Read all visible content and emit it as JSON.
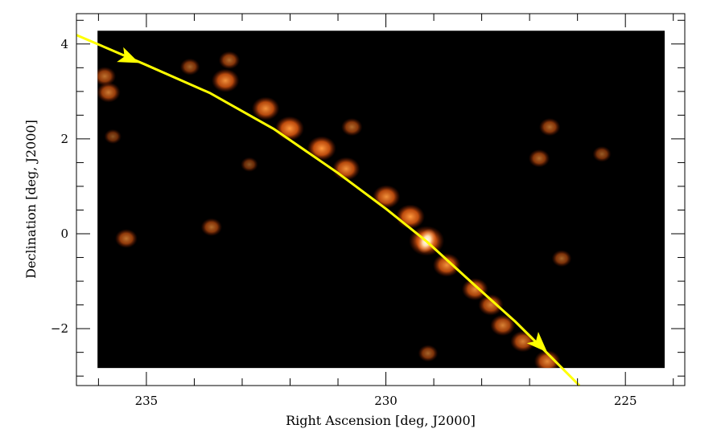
{
  "chart_data": {
    "type": "heatmap",
    "xlabel": "Right Ascension [deg, J2000]",
    "ylabel": "Declination [deg, J2000]",
    "xlim": [
      236.46,
      223.76
    ],
    "ylim": [
      -3.2,
      4.64
    ],
    "x_inverted": true,
    "image_extent": {
      "ra": [
        236.02,
        224.18
      ],
      "dec": [
        -2.83,
        4.28
      ]
    },
    "x_major_ticks": [
      235,
      230,
      225
    ],
    "x_tick_labels": [
      "235",
      "230",
      "225"
    ],
    "x_minor_step": 1,
    "y_major_ticks": [
      4,
      2,
      0,
      -2
    ],
    "y_tick_labels": [
      "4",
      "2",
      "0",
      "−2"
    ],
    "y_minor_step": 0.5,
    "grid": false,
    "colormap": "black-orange-white",
    "track_color": "#ffff00",
    "track": [
      [
        236.46,
        4.19
      ],
      [
        235.03,
        3.57
      ],
      [
        233.68,
        2.97
      ],
      [
        232.34,
        2.21
      ],
      [
        231.0,
        1.28
      ],
      [
        229.99,
        0.52
      ],
      [
        229.15,
        -0.16
      ],
      [
        228.14,
        -1.09
      ],
      [
        227.3,
        -1.85
      ],
      [
        226.63,
        -2.52
      ],
      [
        225.96,
        -3.2
      ]
    ],
    "track_arrows": [
      [
        235.15,
        3.6
      ],
      [
        226.63,
        -2.5
      ]
    ],
    "density_features": [
      {
        "ra": 233.35,
        "dec": 3.23,
        "intensity": 0.7
      },
      {
        "ra": 232.51,
        "dec": 2.64,
        "intensity": 0.7
      },
      {
        "ra": 232.01,
        "dec": 2.22,
        "intensity": 0.75
      },
      {
        "ra": 231.34,
        "dec": 1.8,
        "intensity": 0.75
      },
      {
        "ra": 230.83,
        "dec": 1.37,
        "intensity": 0.7
      },
      {
        "ra": 229.99,
        "dec": 0.78,
        "intensity": 0.7
      },
      {
        "ra": 229.49,
        "dec": 0.36,
        "intensity": 0.75
      },
      {
        "ra": 229.15,
        "dec": -0.15,
        "intensity": 1.0
      },
      {
        "ra": 228.73,
        "dec": -0.66,
        "intensity": 0.7
      },
      {
        "ra": 228.14,
        "dec": -1.17,
        "intensity": 0.65
      },
      {
        "ra": 227.81,
        "dec": -1.5,
        "intensity": 0.6
      },
      {
        "ra": 227.56,
        "dec": -1.93,
        "intensity": 0.6
      },
      {
        "ra": 227.14,
        "dec": -2.27,
        "intensity": 0.6
      },
      {
        "ra": 226.63,
        "dec": -2.69,
        "intensity": 0.65
      },
      {
        "ra": 235.87,
        "dec": 3.32,
        "intensity": 0.5
      },
      {
        "ra": 235.79,
        "dec": 2.98,
        "intensity": 0.55
      },
      {
        "ra": 233.27,
        "dec": 3.66,
        "intensity": 0.45
      },
      {
        "ra": 234.09,
        "dec": 3.52,
        "intensity": 0.4
      },
      {
        "ra": 230.71,
        "dec": 2.25,
        "intensity": 0.45
      },
      {
        "ra": 235.42,
        "dec": -0.1,
        "intensity": 0.5
      },
      {
        "ra": 233.64,
        "dec": 0.14,
        "intensity": 0.45
      },
      {
        "ra": 226.8,
        "dec": 1.59,
        "intensity": 0.45
      },
      {
        "ra": 226.58,
        "dec": 2.25,
        "intensity": 0.45
      },
      {
        "ra": 226.33,
        "dec": -0.52,
        "intensity": 0.4
      },
      {
        "ra": 225.49,
        "dec": 1.68,
        "intensity": 0.35
      },
      {
        "ra": 229.12,
        "dec": -2.52,
        "intensity": 0.4
      },
      {
        "ra": 232.85,
        "dec": 1.46,
        "intensity": 0.3
      },
      {
        "ra": 235.7,
        "dec": 2.05,
        "intensity": 0.3
      }
    ]
  }
}
